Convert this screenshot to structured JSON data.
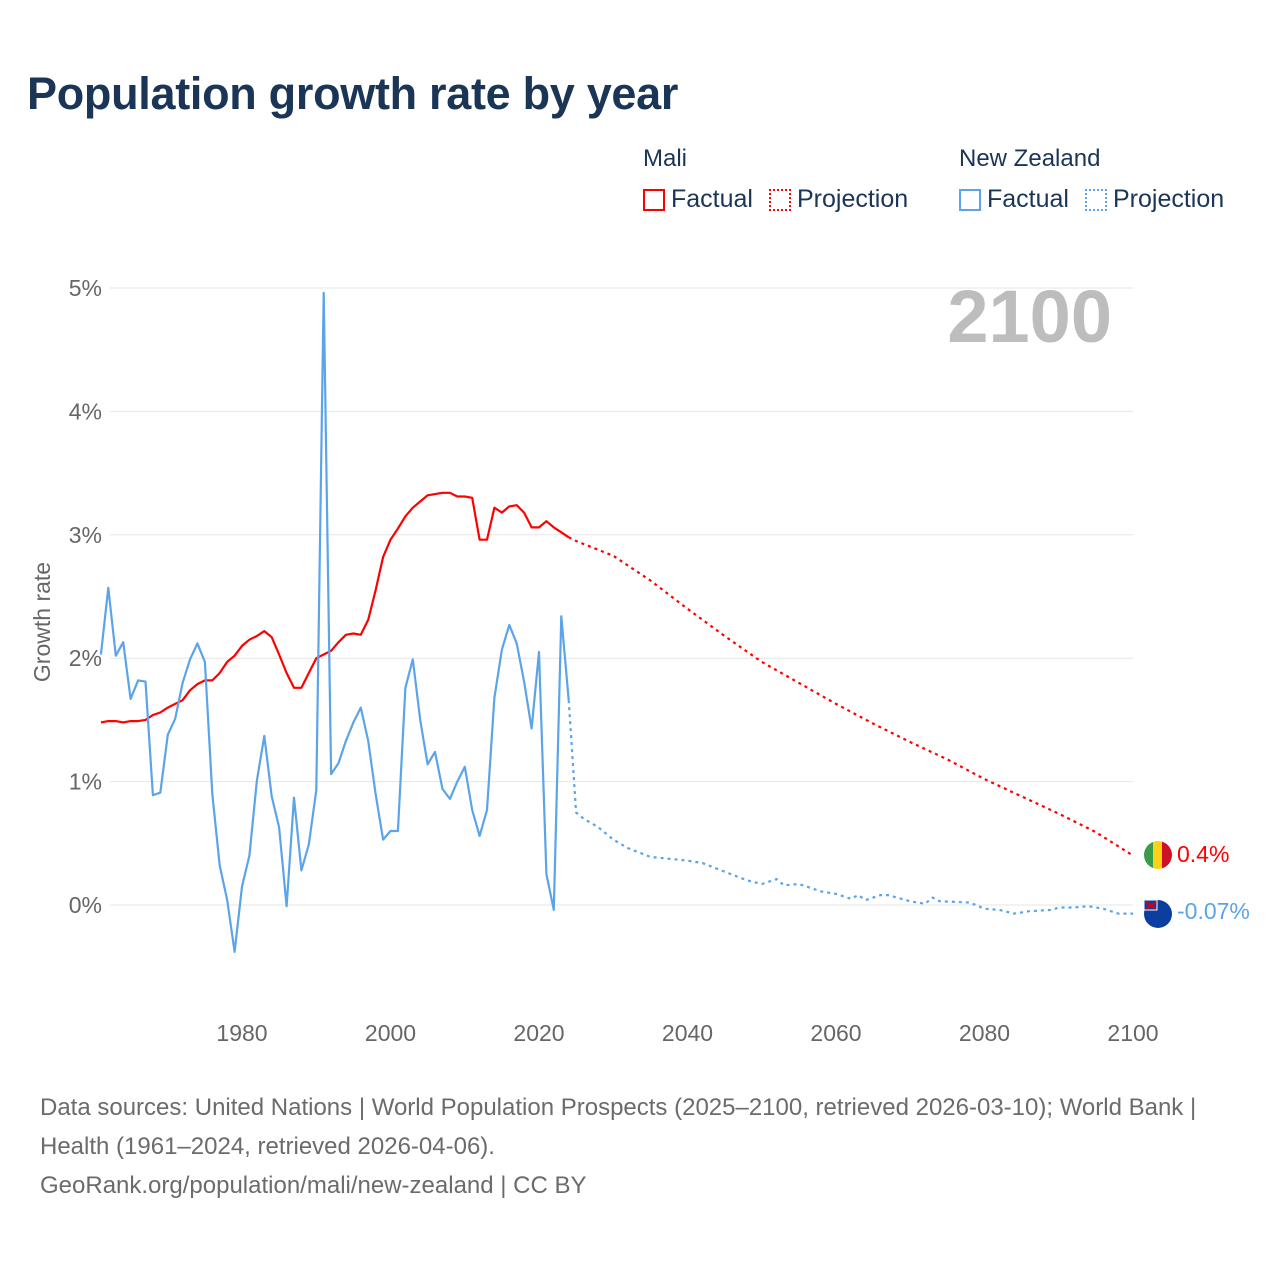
{
  "title": "Population growth rate by year",
  "legend": {
    "groups": [
      {
        "country": "Mali",
        "factual": "Factual",
        "projection": "Projection",
        "color": "#ff0000"
      },
      {
        "country": "New Zealand",
        "factual": "Factual",
        "projection": "Projection",
        "color": "#5ba4ea"
      }
    ]
  },
  "year_label": "2100",
  "footer": {
    "sources": "Data sources: United Nations | World Population Prospects (2025–2100, retrieved 2026-03-10); World Bank | Health (1961–2024, retrieved 2026-04-06).",
    "link": "GeoRank.org/population/mali/new-zealand | CC BY"
  },
  "chart_data": {
    "type": "line",
    "title": "Population growth rate by year",
    "xlabel": "",
    "ylabel": "Growth rate",
    "xlim": [
      1961,
      2100
    ],
    "ylim": [
      -0.8,
      5
    ],
    "xticks": [
      1980,
      2000,
      2020,
      2040,
      2060,
      2080,
      2100
    ],
    "yticks": [
      {
        "v": 0,
        "label": "0%"
      },
      {
        "v": 1,
        "label": "1%"
      },
      {
        "v": 2,
        "label": "2%"
      },
      {
        "v": 3,
        "label": "3%"
      },
      {
        "v": 4,
        "label": "4%"
      },
      {
        "v": 5,
        "label": "5%"
      }
    ],
    "grid": true,
    "series": [
      {
        "name": "Mali Factual",
        "color": "#ff0000",
        "dashed": false,
        "start": 1961,
        "values": [
          1.48,
          1.49,
          1.49,
          1.48,
          1.49,
          1.49,
          1.5,
          1.54,
          1.56,
          1.6,
          1.63,
          1.66,
          1.74,
          1.79,
          1.82,
          1.82,
          1.88,
          1.97,
          2.02,
          2.1,
          2.15,
          2.18,
          2.22,
          2.17,
          2.03,
          1.88,
          1.76,
          1.76,
          1.88,
          2.0,
          2.03,
          2.06,
          2.13,
          2.19,
          2.2,
          2.19,
          2.31,
          2.55,
          2.82,
          2.96,
          3.05,
          3.15,
          3.22,
          3.27,
          3.32,
          3.33,
          3.34,
          3.34,
          3.31,
          3.31,
          3.3,
          2.96,
          2.96,
          3.22,
          3.18,
          3.23,
          3.24,
          3.18,
          3.06,
          3.06,
          3.11,
          3.06,
          3.02,
          2.98
        ]
      },
      {
        "name": "Mali Projection",
        "color": "#ff0000",
        "dashed": true,
        "points": [
          [
            2024,
            2.98
          ],
          [
            2025,
            2.95
          ],
          [
            2030,
            2.83
          ],
          [
            2035,
            2.63
          ],
          [
            2040,
            2.4
          ],
          [
            2045,
            2.18
          ],
          [
            2050,
            1.97
          ],
          [
            2055,
            1.8
          ],
          [
            2060,
            1.63
          ],
          [
            2065,
            1.47
          ],
          [
            2070,
            1.32
          ],
          [
            2075,
            1.18
          ],
          [
            2080,
            1.02
          ],
          [
            2085,
            0.88
          ],
          [
            2090,
            0.74
          ],
          [
            2095,
            0.59
          ],
          [
            2100,
            0.4
          ]
        ]
      },
      {
        "name": "New Zealand Factual",
        "color": "#5ba4ea",
        "dashed": false,
        "start": 1961,
        "values": [
          2.03,
          2.57,
          2.02,
          2.13,
          1.67,
          1.82,
          1.81,
          0.89,
          0.91,
          1.38,
          1.51,
          1.8,
          1.99,
          2.12,
          1.97,
          0.9,
          0.32,
          0.04,
          -0.38,
          0.15,
          0.4,
          1.01,
          1.37,
          0.88,
          0.63,
          -0.01,
          0.87,
          0.28,
          0.49,
          0.93,
          4.96,
          1.06,
          1.15,
          1.33,
          1.48,
          1.6,
          1.33,
          0.9,
          0.53,
          0.6,
          0.6,
          1.76,
          1.99,
          1.5,
          1.14,
          1.24,
          0.94,
          0.86,
          1.0,
          1.12,
          0.77,
          0.56,
          0.77,
          1.68,
          2.07,
          2.27,
          2.12,
          1.81,
          1.43,
          2.05,
          0.25,
          -0.04,
          2.34,
          1.66
        ]
      },
      {
        "name": "New Zealand Projection",
        "color": "#5ba4ea",
        "dashed": true,
        "points": [
          [
            2024,
            1.66
          ],
          [
            2025,
            0.75
          ],
          [
            2026,
            0.7
          ],
          [
            2028,
            0.63
          ],
          [
            2030,
            0.53
          ],
          [
            2032,
            0.46
          ],
          [
            2035,
            0.39
          ],
          [
            2040,
            0.36
          ],
          [
            2042,
            0.34
          ],
          [
            2045,
            0.27
          ],
          [
            2048,
            0.2
          ],
          [
            2050,
            0.17
          ],
          [
            2052,
            0.21
          ],
          [
            2053,
            0.16
          ],
          [
            2055,
            0.17
          ],
          [
            2058,
            0.11
          ],
          [
            2060,
            0.09
          ],
          [
            2062,
            0.05
          ],
          [
            2063,
            0.08
          ],
          [
            2064,
            0.04
          ],
          [
            2066,
            0.08
          ],
          [
            2067,
            0.08
          ],
          [
            2070,
            0.03
          ],
          [
            2072,
            0.01
          ],
          [
            2073,
            0.06
          ],
          [
            2074,
            0.03
          ],
          [
            2078,
            0.02
          ],
          [
            2080,
            -0.03
          ],
          [
            2082,
            -0.04
          ],
          [
            2084,
            -0.07
          ],
          [
            2086,
            -0.05
          ],
          [
            2089,
            -0.04
          ],
          [
            2090,
            -0.02
          ],
          [
            2092,
            -0.02
          ],
          [
            2094,
            -0.01
          ],
          [
            2096,
            -0.03
          ],
          [
            2098,
            -0.07
          ],
          [
            2100,
            -0.07
          ]
        ]
      }
    ],
    "end_labels": [
      {
        "country": "Mali",
        "value": 0.4,
        "label": "0.4%",
        "color": "#ff0000"
      },
      {
        "country": "New Zealand",
        "value": -0.07,
        "label": "-0.07%",
        "color": "#5ba4ea"
      }
    ]
  }
}
